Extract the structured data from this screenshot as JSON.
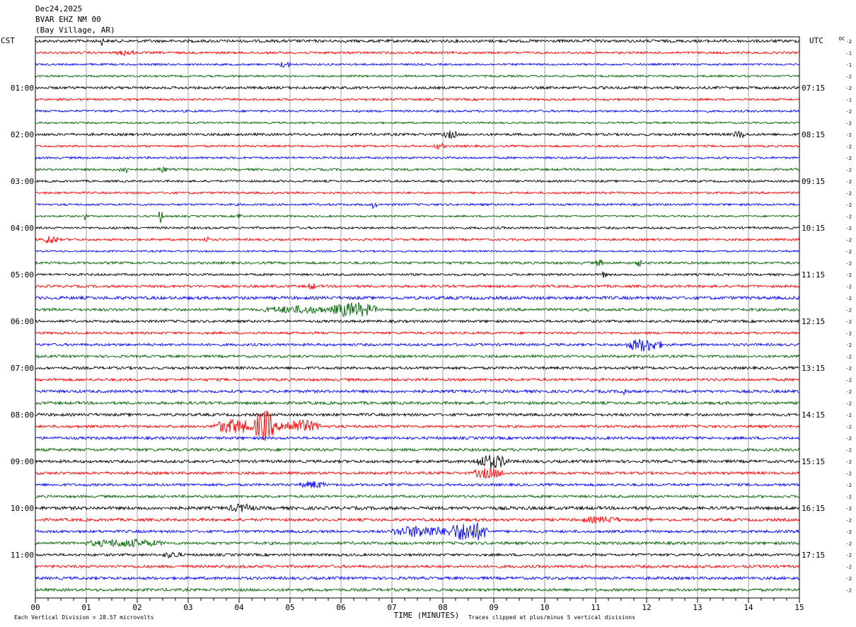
{
  "header": {
    "date": "Dec24,2025",
    "station": "BVAR EHZ NM 00",
    "location": "(Bay Village, AR)"
  },
  "left_zone": "CST",
  "right_zone": "UTC",
  "dc_label": "DC",
  "chart_data": {
    "type": "line",
    "title": "Dec24,2025",
    "xlabel": "TIME (MINUTES)",
    "x_ticks": [
      "00",
      "01",
      "02",
      "03",
      "04",
      "05",
      "06",
      "07",
      "08",
      "09",
      "10",
      "11",
      "12",
      "13",
      "14",
      "15"
    ],
    "xlim": [
      0,
      15
    ],
    "trace_count": 48,
    "minutes_per_trace": 15,
    "trace_colors": [
      "#000000",
      "#ff0000",
      "#0000ff",
      "#006400"
    ],
    "left_hour_labels": [
      {
        "trace": 4,
        "label": "01:00"
      },
      {
        "trace": 8,
        "label": "02:00"
      },
      {
        "trace": 12,
        "label": "03:00"
      },
      {
        "trace": 16,
        "label": "04:00"
      },
      {
        "trace": 20,
        "label": "05:00"
      },
      {
        "trace": 24,
        "label": "06:00"
      },
      {
        "trace": 28,
        "label": "07:00"
      },
      {
        "trace": 32,
        "label": "08:00"
      },
      {
        "trace": 36,
        "label": "09:00"
      },
      {
        "trace": 40,
        "label": "10:00"
      },
      {
        "trace": 44,
        "label": "11:00"
      }
    ],
    "right_hour_labels": [
      {
        "trace": 4,
        "label": "07:15"
      },
      {
        "trace": 8,
        "label": "08:15"
      },
      {
        "trace": 12,
        "label": "09:15"
      },
      {
        "trace": 16,
        "label": "10:15"
      },
      {
        "trace": 20,
        "label": "11:15"
      },
      {
        "trace": 24,
        "label": "12:15"
      },
      {
        "trace": 28,
        "label": "13:15"
      },
      {
        "trace": 32,
        "label": "14:15"
      },
      {
        "trace": 36,
        "label": "15:15"
      },
      {
        "trace": 40,
        "label": "16:15"
      },
      {
        "trace": 44,
        "label": "17:15"
      }
    ],
    "dc_offsets": [
      "-2",
      "-1",
      "-1",
      "-2",
      "-2",
      "-1",
      "-2",
      "-2",
      "-2",
      "-2",
      "-2",
      "-2",
      "-2",
      "-2",
      "-2",
      "-2",
      "-2",
      "-2",
      "-2",
      "-2",
      "-2",
      "-2",
      "-2",
      "-2",
      "-2",
      "-2",
      "-2",
      "-2",
      "-2",
      "-2",
      "-2",
      "-2",
      "-2",
      "-2",
      "-2",
      "-2",
      "-2",
      "-2",
      "-2",
      "-2",
      "-2",
      "-2",
      "-2",
      "-2",
      "-2",
      "-2",
      "-2",
      "-2"
    ],
    "noise_levels": [
      2.0,
      1.6,
      1.4,
      1.4,
      1.8,
      1.5,
      1.5,
      1.3,
      1.8,
      1.5,
      1.5,
      1.6,
      1.5,
      1.5,
      1.5,
      1.3,
      1.6,
      1.6,
      1.3,
      1.7,
      1.6,
      1.8,
      2.2,
      2.0,
      1.8,
      1.7,
      1.8,
      1.8,
      1.9,
      1.9,
      2.0,
      2.0,
      2.0,
      1.9,
      1.9,
      2.0,
      2.0,
      1.9,
      1.8,
      1.8,
      2.3,
      2.0,
      1.9,
      2.0,
      1.8,
      2.0,
      2.0,
      2.0
    ],
    "events": [
      {
        "trace": 0,
        "start": 1.28,
        "end": 1.34,
        "amplitude": 5
      },
      {
        "trace": 1,
        "start": 1.6,
        "end": 1.95,
        "amplitude": 3
      },
      {
        "trace": 2,
        "start": 4.8,
        "end": 5.0,
        "amplitude": 4
      },
      {
        "trace": 8,
        "start": 8.0,
        "end": 8.3,
        "amplitude": 4
      },
      {
        "trace": 8,
        "start": 13.7,
        "end": 13.95,
        "amplitude": 4
      },
      {
        "trace": 9,
        "start": 7.8,
        "end": 8.05,
        "amplitude": 3
      },
      {
        "trace": 11,
        "start": 1.65,
        "end": 1.9,
        "amplitude": 4
      },
      {
        "trace": 11,
        "start": 2.4,
        "end": 2.6,
        "amplitude": 3
      },
      {
        "trace": 14,
        "start": 6.6,
        "end": 6.7,
        "amplitude": 5
      },
      {
        "trace": 15,
        "start": 0.95,
        "end": 1.0,
        "amplitude": 5
      },
      {
        "trace": 15,
        "start": 2.42,
        "end": 2.5,
        "amplitude": 9
      },
      {
        "trace": 15,
        "start": 3.95,
        "end": 4.05,
        "amplitude": 4
      },
      {
        "trace": 17,
        "start": 0.15,
        "end": 0.45,
        "amplitude": 5
      },
      {
        "trace": 17,
        "start": 3.3,
        "end": 3.45,
        "amplitude": 3
      },
      {
        "trace": 19,
        "start": 11.0,
        "end": 11.15,
        "amplitude": 4
      },
      {
        "trace": 19,
        "start": 11.8,
        "end": 11.9,
        "amplitude": 4
      },
      {
        "trace": 20,
        "start": 11.1,
        "end": 11.2,
        "amplitude": 5
      },
      {
        "trace": 21,
        "start": 5.35,
        "end": 5.5,
        "amplitude": 4
      },
      {
        "trace": 23,
        "start": 4.5,
        "end": 5.8,
        "amplitude": 4
      },
      {
        "trace": 23,
        "start": 5.8,
        "end": 6.7,
        "amplitude": 9
      },
      {
        "trace": 26,
        "start": 11.6,
        "end": 12.3,
        "amplitude": 8
      },
      {
        "trace": 30,
        "start": 11.5,
        "end": 11.6,
        "amplitude": 5
      },
      {
        "trace": 33,
        "start": 3.5,
        "end": 4.3,
        "amplitude": 9
      },
      {
        "trace": 33,
        "start": 4.3,
        "end": 4.7,
        "amplitude": 22
      },
      {
        "trace": 33,
        "start": 4.7,
        "end": 5.6,
        "amplitude": 8
      },
      {
        "trace": 36,
        "start": 8.6,
        "end": 9.3,
        "amplitude": 8
      },
      {
        "trace": 37,
        "start": 8.6,
        "end": 9.2,
        "amplitude": 6
      },
      {
        "trace": 38,
        "start": 5.2,
        "end": 5.7,
        "amplitude": 4
      },
      {
        "trace": 40,
        "start": 3.8,
        "end": 4.3,
        "amplitude": 4
      },
      {
        "trace": 41,
        "start": 10.7,
        "end": 11.5,
        "amplitude": 3
      },
      {
        "trace": 42,
        "start": 7.0,
        "end": 8.1,
        "amplitude": 7
      },
      {
        "trace": 42,
        "start": 8.1,
        "end": 8.9,
        "amplitude": 13
      },
      {
        "trace": 43,
        "start": 1.0,
        "end": 2.5,
        "amplitude": 4
      },
      {
        "trace": 44,
        "start": 2.5,
        "end": 2.9,
        "amplitude": 3
      }
    ]
  },
  "footer": {
    "scale_note": "Each Vertical Division =   28.57 microvolts",
    "clip_note": "Traces clipped at plus/minus 5 vertical divisions"
  }
}
